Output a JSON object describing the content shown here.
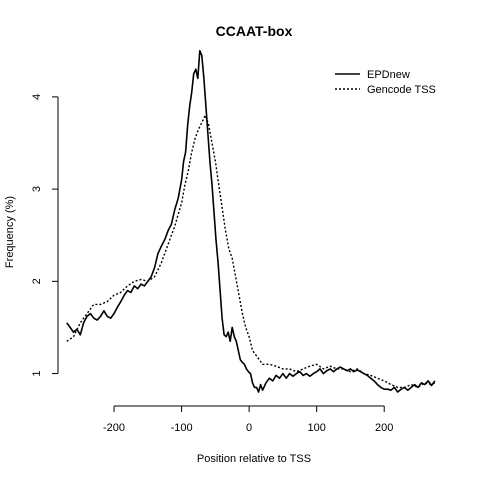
{
  "chart_data": {
    "type": "line",
    "title": "CCAAT-box",
    "xlabel": "Position relative to TSS",
    "ylabel": "Frequency (%)",
    "xlim": [
      -280,
      290
    ],
    "ylim": [
      0.8,
      4.4
    ],
    "x_ticks": [
      -200,
      -100,
      0,
      100,
      200
    ],
    "x_tick_labels": [
      "-200",
      "-100",
      "0",
      "100",
      "200"
    ],
    "y_ticks": [
      1,
      2,
      3,
      4
    ],
    "y_tick_labels": [
      "1",
      "2",
      "3",
      "4"
    ],
    "grid": false,
    "legend_position": "top-right",
    "series": [
      {
        "name": "EPDnew",
        "line_style": "solid",
        "x": [
          -270,
          -265,
          -260,
          -255,
          -250,
          -245,
          -240,
          -235,
          -230,
          -225,
          -220,
          -215,
          -210,
          -205,
          -200,
          -195,
          -190,
          -185,
          -180,
          -175,
          -170,
          -165,
          -160,
          -155,
          -150,
          -145,
          -140,
          -135,
          -130,
          -125,
          -120,
          -115,
          -110,
          -105,
          -100,
          -97,
          -94,
          -91,
          -88,
          -85,
          -82,
          -79,
          -76,
          -73,
          -70,
          -67,
          -64,
          -61,
          -58,
          -55,
          -52,
          -49,
          -46,
          -43,
          -40,
          -37,
          -34,
          -31,
          -28,
          -25,
          -22,
          -19,
          -16,
          -13,
          -10,
          -7,
          -4,
          -1,
          2,
          5,
          8,
          11,
          14,
          17,
          20,
          25,
          30,
          35,
          40,
          45,
          50,
          55,
          60,
          65,
          70,
          75,
          80,
          85,
          90,
          95,
          100,
          105,
          110,
          115,
          120,
          125,
          130,
          135,
          140,
          145,
          150,
          155,
          160,
          165,
          170,
          175,
          180,
          185,
          190,
          195,
          200,
          205,
          210,
          215,
          220,
          225,
          230,
          235,
          240,
          245,
          250,
          255,
          260,
          265,
          270,
          275
        ],
        "y": [
          1.55,
          1.5,
          1.45,
          1.48,
          1.42,
          1.55,
          1.62,
          1.65,
          1.6,
          1.58,
          1.62,
          1.68,
          1.62,
          1.6,
          1.65,
          1.72,
          1.78,
          1.85,
          1.9,
          1.88,
          1.95,
          1.92,
          1.97,
          1.95,
          2.0,
          2.05,
          2.15,
          2.3,
          2.38,
          2.45,
          2.55,
          2.62,
          2.78,
          2.9,
          3.1,
          3.3,
          3.4,
          3.7,
          3.9,
          4.05,
          4.25,
          4.3,
          4.2,
          4.5,
          4.45,
          4.2,
          3.9,
          3.6,
          3.3,
          3.05,
          2.75,
          2.45,
          2.2,
          1.9,
          1.6,
          1.42,
          1.4,
          1.45,
          1.35,
          1.5,
          1.4,
          1.35,
          1.25,
          1.15,
          1.12,
          1.1,
          1.05,
          1.02,
          1.0,
          0.9,
          0.85,
          0.85,
          0.8,
          0.88,
          0.82,
          0.9,
          0.95,
          0.92,
          0.98,
          0.95,
          1.0,
          0.95,
          1.0,
          0.97,
          1.0,
          1.02,
          0.98,
          1.0,
          0.97,
          1.0,
          1.02,
          1.05,
          1.0,
          1.03,
          1.05,
          1.02,
          1.05,
          1.07,
          1.05,
          1.03,
          1.05,
          1.02,
          1.04,
          1.02,
          1.0,
          0.98,
          0.95,
          0.92,
          0.88,
          0.85,
          0.83,
          0.83,
          0.82,
          0.85,
          0.8,
          0.83,
          0.85,
          0.82,
          0.85,
          0.88,
          0.85,
          0.9,
          0.88,
          0.92,
          0.87,
          0.92
        ]
      },
      {
        "name": "Gencode TSS",
        "line_style": "dotted",
        "x": [
          -270,
          -260,
          -250,
          -240,
          -230,
          -220,
          -210,
          -200,
          -190,
          -180,
          -170,
          -160,
          -150,
          -140,
          -130,
          -120,
          -110,
          -100,
          -95,
          -90,
          -85,
          -80,
          -75,
          -70,
          -65,
          -60,
          -55,
          -50,
          -45,
          -40,
          -35,
          -30,
          -25,
          -20,
          -15,
          -10,
          -5,
          0,
          5,
          10,
          15,
          20,
          30,
          40,
          50,
          60,
          70,
          80,
          90,
          100,
          110,
          120,
          130,
          140,
          150,
          160,
          170,
          180,
          190,
          200,
          210,
          220,
          230,
          240,
          250,
          260,
          270,
          275
        ],
        "y": [
          1.35,
          1.4,
          1.55,
          1.65,
          1.75,
          1.75,
          1.78,
          1.85,
          1.88,
          1.95,
          2.0,
          2.02,
          2.0,
          2.05,
          2.2,
          2.4,
          2.6,
          2.85,
          3.05,
          3.2,
          3.4,
          3.55,
          3.65,
          3.72,
          3.8,
          3.7,
          3.5,
          3.3,
          3.05,
          2.8,
          2.55,
          2.35,
          2.25,
          2.05,
          1.85,
          1.65,
          1.5,
          1.4,
          1.25,
          1.2,
          1.15,
          1.1,
          1.1,
          1.08,
          1.05,
          1.05,
          1.02,
          1.05,
          1.08,
          1.1,
          1.05,
          1.08,
          1.05,
          1.05,
          1.02,
          1.05,
          1.0,
          0.98,
          0.95,
          0.92,
          0.88,
          0.85,
          0.85,
          0.88,
          0.85,
          0.9,
          0.88,
          0.9
        ]
      }
    ]
  }
}
